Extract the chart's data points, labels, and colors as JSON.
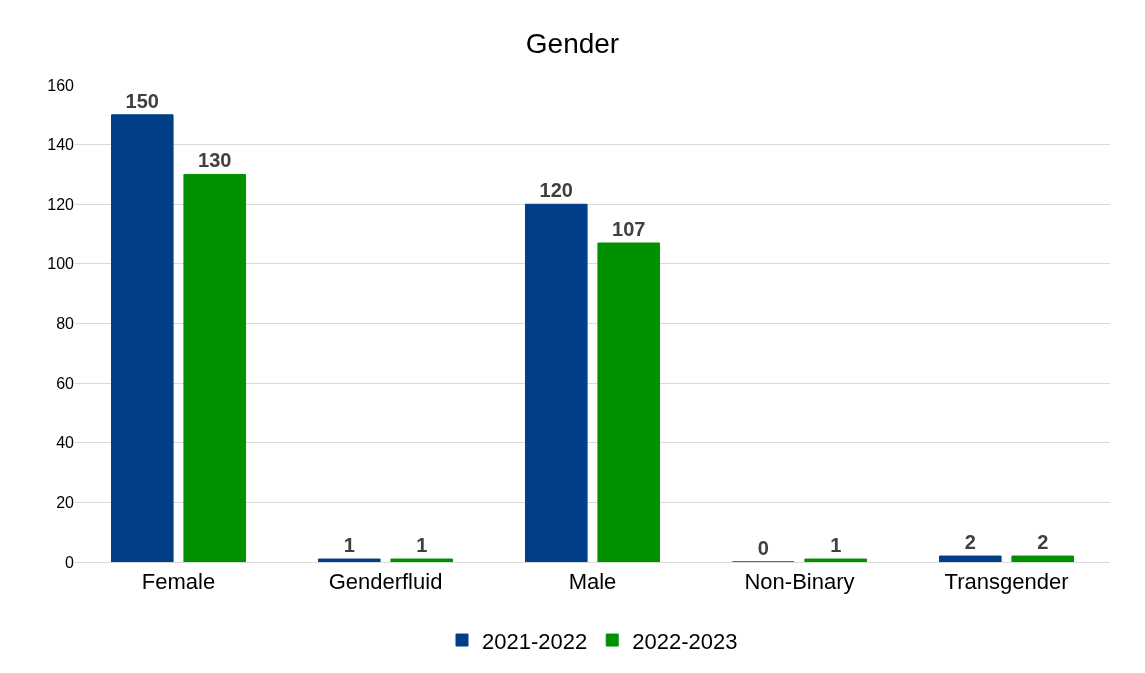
{
  "chart_data": {
    "type": "bar",
    "title": "Gender",
    "categories": [
      "Female",
      "Genderfluid",
      "Male",
      "Non-Binary",
      "Transgender"
    ],
    "series": [
      {
        "name": "2021-2022",
        "color": "#003f87",
        "values": [
          150,
          1,
          120,
          0,
          2
        ]
      },
      {
        "name": "2022-2023",
        "color": "#009100",
        "values": [
          130,
          1,
          107,
          1,
          2
        ]
      }
    ],
    "ylim": [
      0,
      160
    ],
    "yticks": [
      0,
      20,
      40,
      60,
      80,
      100,
      120,
      140,
      160
    ],
    "grid": "y",
    "legend": "bottom",
    "data_labels": true
  }
}
